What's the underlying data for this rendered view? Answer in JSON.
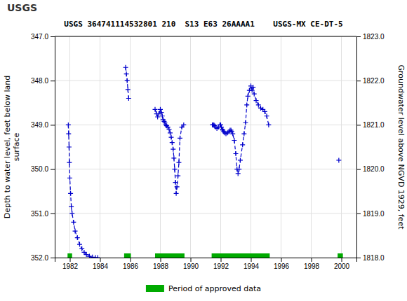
{
  "chart_data": {
    "type": "line",
    "title": "USGS 364741114532801 210  S13 E63 26AAAA1    USGS-MX CE-DT-5",
    "annotations": [
      "USGS"
    ],
    "ylabel": "Depth to water level, feet below land\nsurface",
    "y2label": "Groundwater level above NGVD 1929, feet",
    "xlim": [
      1981,
      2001
    ],
    "xticks": [
      1982,
      1984,
      1986,
      1988,
      1990,
      1992,
      1994,
      1996,
      1998,
      2000
    ],
    "ylim": [
      352.0,
      347.0
    ],
    "yticks": [
      {
        "value": 347.0,
        "label": "347.0"
      },
      {
        "value": 348.0,
        "label": "348.0"
      },
      {
        "value": 349.0,
        "label": "349.0"
      },
      {
        "value": 350.0,
        "label": "350.0"
      },
      {
        "value": 351.0,
        "label": "351.0"
      },
      {
        "value": 352.0,
        "label": "352.0"
      }
    ],
    "y2lim": [
      1818.0,
      1823.0
    ],
    "y2ticks": [
      {
        "value": 1818.0,
        "label": "1818.0"
      },
      {
        "value": 1819.0,
        "label": "1819.0"
      },
      {
        "value": 1820.0,
        "label": "1820.0"
      },
      {
        "value": 1821.0,
        "label": "1821.0"
      },
      {
        "value": 1822.0,
        "label": "1822.0"
      },
      {
        "value": 1823.0,
        "label": "1823.0"
      }
    ],
    "grid": true,
    "series": [
      {
        "color": "#0000cc",
        "marker": "plus",
        "line_style": "dashed",
        "x": [
          1981.9,
          1981.92,
          1981.95,
          1981.97,
          1982.0,
          1982.05,
          1982.1,
          1982.15,
          1982.25,
          1982.35,
          1982.5,
          1982.65,
          1982.8,
          1982.95,
          1983.1,
          1983.3,
          1983.5,
          1983.7,
          1983.85
        ],
        "values": [
          349.0,
          349.2,
          349.5,
          349.85,
          350.2,
          350.55,
          350.85,
          351.0,
          351.2,
          351.4,
          351.55,
          351.7,
          351.8,
          351.88,
          351.93,
          351.97,
          351.99,
          352.0,
          352.0
        ]
      },
      {
        "color": "#0000cc",
        "marker": "plus",
        "line_style": "dashed",
        "x": [
          1985.7,
          1985.75,
          1985.8,
          1985.85,
          1985.9
        ],
        "values": [
          347.7,
          347.85,
          348.0,
          348.2,
          348.4
        ]
      },
      {
        "color": "#0000cc",
        "marker": "plus",
        "line_style": "dashed",
        "x": [
          1987.65,
          1987.75,
          1987.82,
          1987.9,
          1988.0,
          1988.07,
          1988.13,
          1988.18,
          1988.25,
          1988.3,
          1988.35,
          1988.42,
          1988.5,
          1988.58,
          1988.65,
          1988.72,
          1988.78,
          1988.85,
          1988.9,
          1988.95,
          1989.0,
          1989.05,
          1989.1,
          1989.17,
          1989.23,
          1989.3,
          1989.42,
          1989.55
        ],
        "values": [
          348.65,
          348.75,
          348.82,
          348.75,
          348.65,
          348.72,
          348.8,
          348.88,
          348.92,
          348.95,
          349.0,
          349.02,
          349.05,
          349.1,
          349.18,
          349.28,
          349.4,
          349.55,
          349.75,
          350.0,
          350.3,
          350.55,
          350.4,
          350.15,
          349.85,
          349.3,
          349.05,
          349.0
        ]
      },
      {
        "color": "#0000cc",
        "marker": "plus",
        "line_style": "dashed",
        "x": [
          1991.45,
          1991.5,
          1991.55,
          1991.6,
          1991.65,
          1991.75,
          1991.85,
          1991.95,
          1992.0,
          1992.05,
          1992.1,
          1992.15,
          1992.2,
          1992.27,
          1992.35,
          1992.45,
          1992.55,
          1992.62,
          1992.68,
          1992.73,
          1992.8,
          1992.9,
          1993.0,
          1993.08,
          1993.15,
          1993.22,
          1993.3,
          1993.45,
          1993.55,
          1993.65,
          1993.73,
          1993.8,
          1993.9,
          1994.0,
          1994.08,
          1994.15,
          1994.22,
          1994.35,
          1994.5,
          1994.65,
          1994.8,
          1994.92,
          1995.05,
          1995.18
        ],
        "values": [
          349.0,
          349.0,
          349.0,
          349.02,
          349.05,
          349.08,
          349.05,
          349.0,
          349.0,
          349.05,
          349.1,
          349.12,
          349.15,
          349.18,
          349.2,
          349.18,
          349.15,
          349.12,
          349.12,
          349.15,
          349.2,
          349.35,
          349.65,
          350.0,
          350.1,
          350.0,
          349.8,
          349.45,
          349.2,
          348.95,
          348.55,
          348.35,
          348.22,
          348.12,
          348.22,
          348.15,
          348.3,
          348.45,
          348.55,
          348.62,
          348.65,
          348.7,
          348.8,
          349.0
        ]
      },
      {
        "color": "#0000cc",
        "marker": "plus",
        "line_style": "dashed",
        "x": [
          1999.83
        ],
        "values": [
          349.8
        ]
      }
    ],
    "approved_periods": {
      "name": "Period of approved data",
      "color": "#00aa00",
      "ranges": [
        [
          1981.85,
          1982.15
        ],
        [
          1985.6,
          1986.05
        ],
        [
          1987.65,
          1989.6
        ],
        [
          1991.4,
          1995.25
        ],
        [
          1999.75,
          2000.1
        ]
      ]
    }
  }
}
